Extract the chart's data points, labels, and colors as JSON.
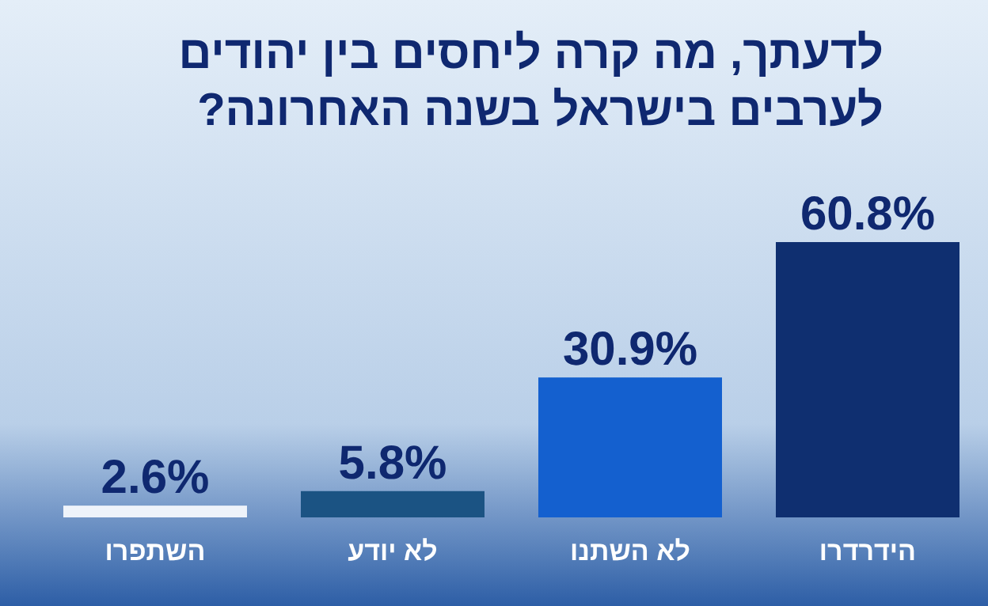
{
  "chart_data": {
    "type": "bar",
    "title": "לדעתך, מה קרה ליחסים בין יהודים לערבים בישראל בשנה האחרונה?",
    "categories": [
      "השתפרו",
      "לא יודע",
      "לא השתנו",
      "הידרדרו"
    ],
    "values": [
      2.6,
      5.8,
      30.9,
      60.8
    ],
    "value_labels": [
      "2.6%",
      "5.8%",
      "30.9%",
      "60.8%"
    ],
    "colors": [
      "#eef3fa",
      "#1b5383",
      "#1460cf",
      "#0f2f70"
    ]
  }
}
